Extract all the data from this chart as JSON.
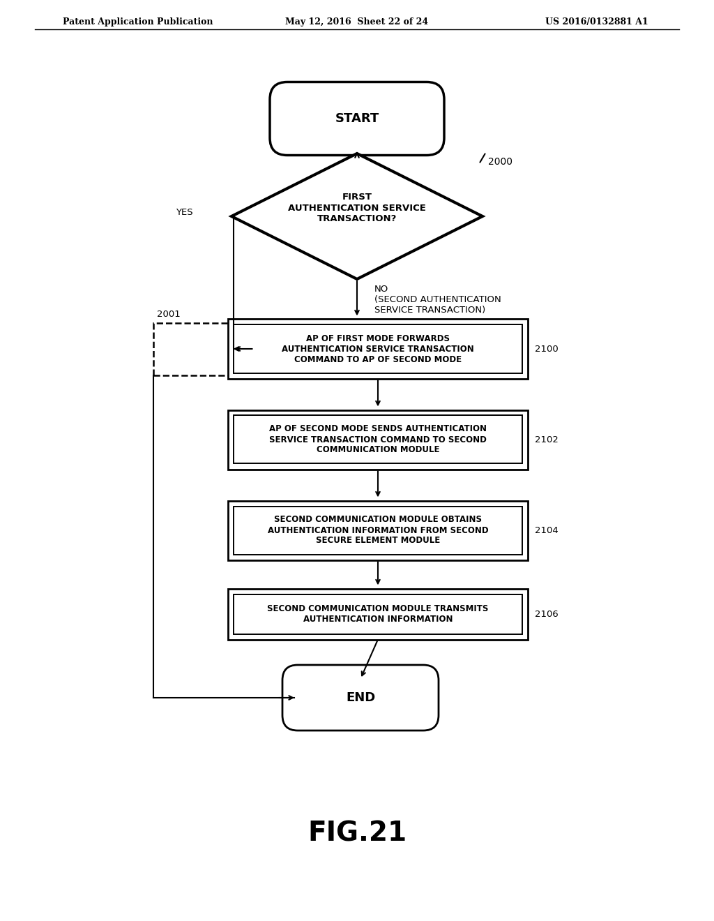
{
  "bg_color": "#ffffff",
  "header_left": "Patent Application Publication",
  "header_mid": "May 12, 2016  Sheet 22 of 24",
  "header_right": "US 2016/0132881 A1",
  "fig_label": "FIG.21",
  "start_label": "START",
  "end_label": "END",
  "diamond_label": "FIRST\nAUTHENTICATION SERVICE\nTRANSACTION?",
  "diamond_ref": "2000",
  "yes_label": "YES",
  "no_label": "NO\n(SECOND AUTHENTICATION\nSERVICE TRANSACTION)",
  "box2001_ref": "2001",
  "box2100_text": "AP OF FIRST MODE FORWARDS\nAUTHENTICATION SERVICE TRANSACTION\nCOMMAND TO AP OF SECOND MODE",
  "box2100_ref": "2100",
  "box2102_text": "AP OF SECOND MODE SENDS AUTHENTICATION\nSERVICE TRANSACTION COMMAND TO SECOND\nCOMMUNICATION MODULE",
  "box2102_ref": "2102",
  "box2104_text": "SECOND COMMUNICATION MODULE OBTAINS\nAUTHENTICATION INFORMATION FROM SECOND\nSECURE ELEMENT MODULE",
  "box2104_ref": "2104",
  "box2106_text": "SECOND COMMUNICATION MODULE TRANSMITS\nAUTHENTICATION INFORMATION",
  "box2106_ref": "2106"
}
